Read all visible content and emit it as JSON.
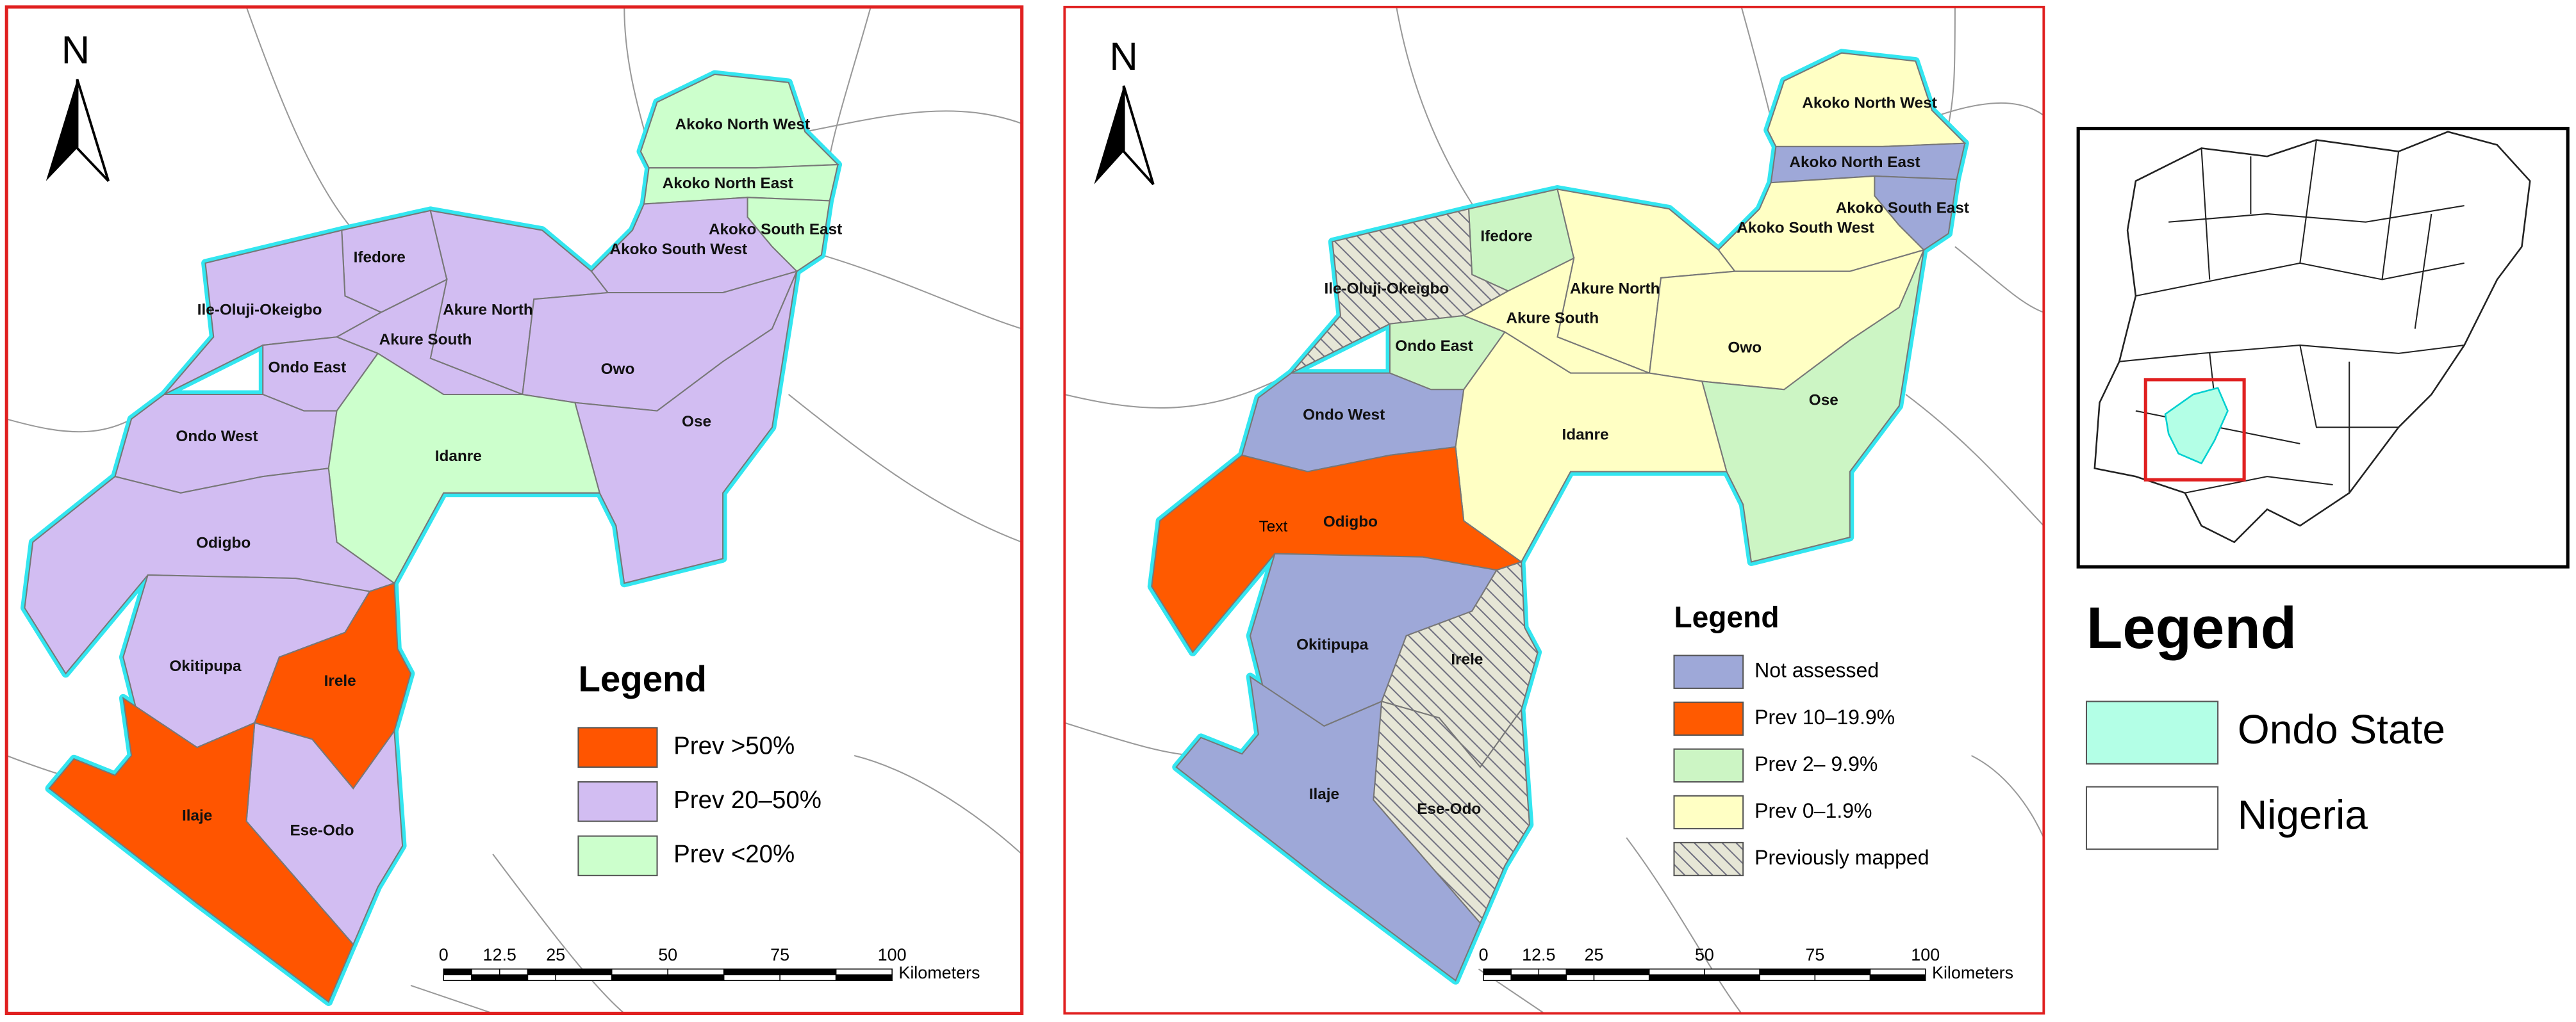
{
  "maps": [
    {
      "north": "N",
      "regions": [
        {
          "name": "Akoko North West",
          "color": "#ccffcc"
        },
        {
          "name": "Akoko North East",
          "color": "#ccffcc"
        },
        {
          "name": "Akoko South East",
          "color": "#ccffcc"
        },
        {
          "name": "Akoko South West",
          "color": "#d2bdf2"
        },
        {
          "name": "Ifedore",
          "color": "#d2bdf2"
        },
        {
          "name": "Ile-Oluji-Okeigbo",
          "color": "#d2bdf2"
        },
        {
          "name": "Akure North",
          "color": "#d2bdf2"
        },
        {
          "name": "Akure South",
          "color": "#d2bdf2"
        },
        {
          "name": "Ondo East",
          "color": "#d2bdf2"
        },
        {
          "name": "Ondo West",
          "color": "#d2bdf2"
        },
        {
          "name": "Owo",
          "color": "#d2bdf2"
        },
        {
          "name": "Ose",
          "color": "#d2bdf2"
        },
        {
          "name": "Idanre",
          "color": "#ccffcc"
        },
        {
          "name": "Odigbo",
          "color": "#d2bdf2"
        },
        {
          "name": "Okitipupa",
          "color": "#d2bdf2"
        },
        {
          "name": "Irele",
          "color": "#ff5500"
        },
        {
          "name": "Ese-Odo",
          "color": "#d2bdf2"
        },
        {
          "name": "Ilaje",
          "color": "#ff5500"
        }
      ],
      "legend": {
        "title": "Legend",
        "items": [
          {
            "label": "Prev >50%",
            "color": "#ff5500"
          },
          {
            "label": "Prev 20–50%",
            "color": "#d2bdf2"
          },
          {
            "label": "Prev <20%",
            "color": "#ccffcc"
          }
        ]
      },
      "scale": {
        "ticks": [
          "0",
          "12.5",
          "25",
          "50",
          "75",
          "100"
        ],
        "unit": "Kilometers"
      }
    },
    {
      "north": "N",
      "regions": [
        {
          "name": "Akoko North West",
          "color": "#ffffc4"
        },
        {
          "name": "Akoko North East",
          "color": "#9ea8d8"
        },
        {
          "name": "Akoko South East",
          "color": "#9ea8d8"
        },
        {
          "name": "Akoko South West",
          "color": "#ffffc4"
        },
        {
          "name": "Ifedore",
          "color": "#ccf5c4"
        },
        {
          "name": "Ile-Oluji-Okeigbo",
          "color": "#e6e6d6",
          "pattern": "hatch"
        },
        {
          "name": "Akure North",
          "color": "#ffffc4"
        },
        {
          "name": "Akure South",
          "color": "#ffffc4"
        },
        {
          "name": "Ondo East",
          "color": "#ccf5c4"
        },
        {
          "name": "Ondo West",
          "color": "#9ea8d8"
        },
        {
          "name": "Owo",
          "color": "#ffffc4"
        },
        {
          "name": "Ose",
          "color": "#ccf5c4"
        },
        {
          "name": "Idanre",
          "color": "#ffffc4"
        },
        {
          "name": "Odigbo",
          "color": "#ff5a00"
        },
        {
          "name": "Okitipupa",
          "color": "#9ea8d8"
        },
        {
          "name": "Irele",
          "color": "#e6e6d6",
          "pattern": "hatch"
        },
        {
          "name": "Ese-Odo",
          "color": "#e6e6d6",
          "pattern": "hatch"
        },
        {
          "name": "Ilaje",
          "color": "#9ea8d8"
        }
      ],
      "annotation": "Text",
      "legend": {
        "title": "Legend",
        "items": [
          {
            "label": "Not assessed",
            "color": "#9ea8d8"
          },
          {
            "label": "Prev 10–19.9%",
            "color": "#ff5a00"
          },
          {
            "label": "Prev 2– 9.9%",
            "color": "#ccf5c4"
          },
          {
            "label": "Prev 0–1.9%",
            "color": "#ffffc4"
          },
          {
            "label": "Previously mapped",
            "color": "#e6e6d6",
            "pattern": "hatch"
          }
        ]
      },
      "scale": {
        "ticks": [
          "0",
          "12.5",
          "25",
          "50",
          "75",
          "100"
        ],
        "unit": "Kilometers"
      }
    }
  ],
  "inset": {
    "legend": {
      "title": "Legend",
      "items": [
        {
          "label": "Ondo State",
          "color": "#b3ffe6"
        },
        {
          "label": "Nigeria",
          "color": "#ffffff"
        }
      ]
    }
  }
}
